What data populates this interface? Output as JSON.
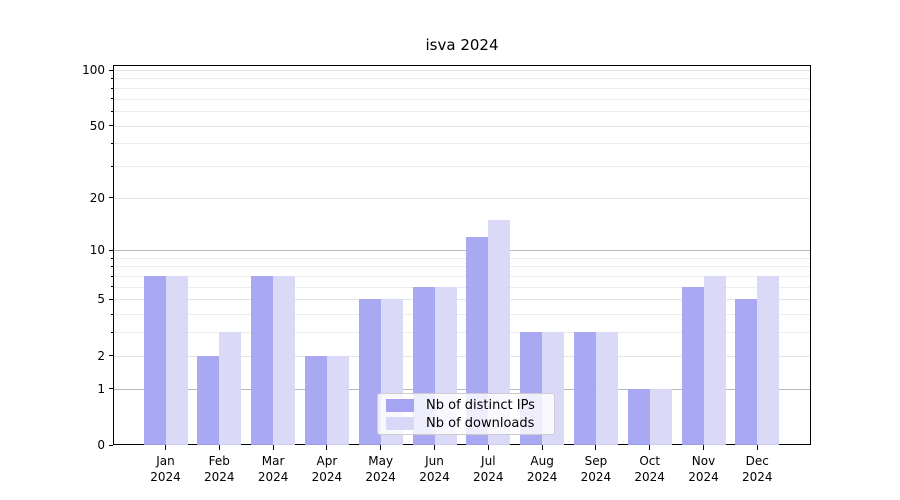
{
  "chart_data": {
    "type": "bar",
    "title": "isva 2024",
    "categories": [
      "Jan",
      "Feb",
      "Mar",
      "Apr",
      "May",
      "Jun",
      "Jul",
      "Aug",
      "Sep",
      "Oct",
      "Nov",
      "Dec"
    ],
    "year_label": "2024",
    "series": [
      {
        "name": "Nb of distinct IPs",
        "color": "#a4a4f2",
        "values": [
          7,
          2,
          7,
          2,
          5,
          6,
          12,
          3,
          3,
          1,
          6,
          5
        ]
      },
      {
        "name": "Nb of downloads",
        "color": "#d8d8f8",
        "values": [
          7,
          3,
          7,
          2,
          5,
          6,
          15,
          3,
          3,
          1,
          7,
          7
        ]
      }
    ],
    "y_axis": {
      "scale": "log1p",
      "range": [
        0,
        100
      ],
      "major_ticks": [
        100,
        50,
        20,
        10,
        5,
        2,
        1,
        0
      ],
      "minor_gridlines": [
        90,
        80,
        70,
        60,
        40,
        30,
        9,
        8,
        7,
        6,
        4,
        3
      ],
      "emphasized_gridlines": [
        10,
        1
      ]
    },
    "legend": {
      "position": "lower center"
    },
    "grid": true
  },
  "colors": {
    "grid_emphasis": "#b7b7b7",
    "grid_light": "#e4e4e4",
    "grid_minor": "#ececec",
    "axis": "#000000",
    "legend_border": "#cccccc",
    "background": "#ffffff"
  }
}
